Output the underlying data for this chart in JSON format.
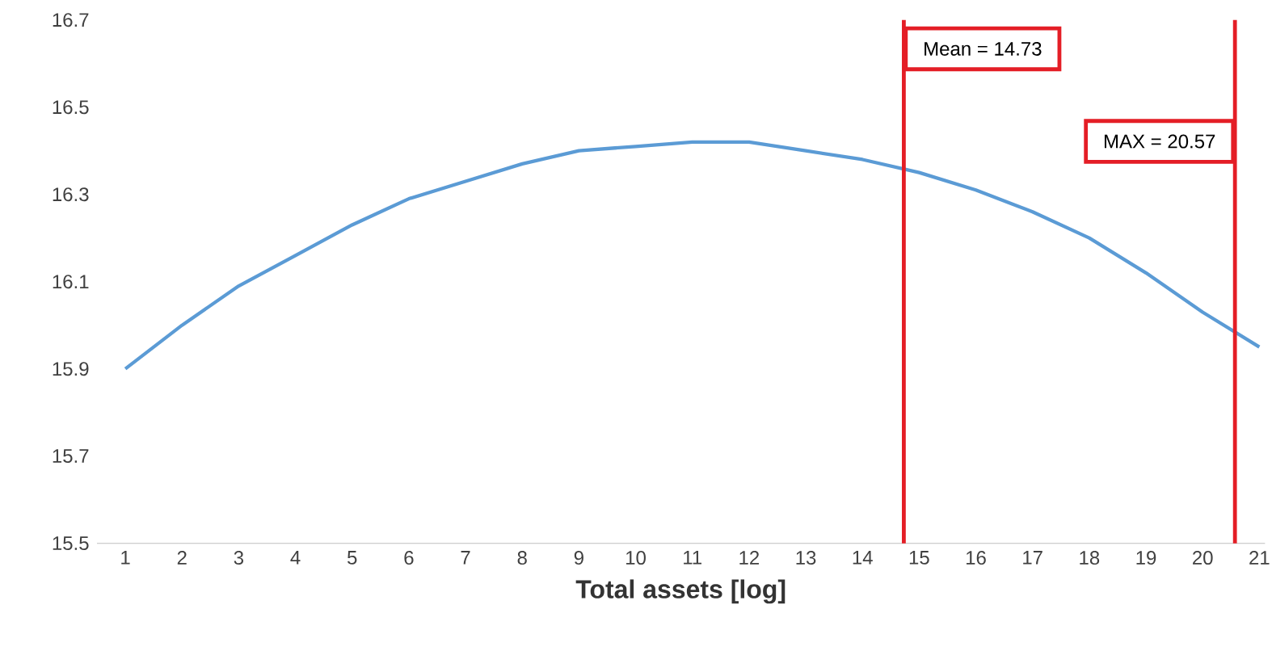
{
  "chart_data": {
    "type": "line",
    "xlabel": "Total assets [log]",
    "x": [
      1,
      2,
      3,
      4,
      5,
      6,
      7,
      8,
      9,
      10,
      11,
      12,
      13,
      14,
      15,
      16,
      17,
      18,
      19,
      20,
      21
    ],
    "series": [
      {
        "color": "#5b9bd5",
        "values": [
          15.9,
          16.0,
          16.09,
          16.16,
          16.23,
          16.29,
          16.33,
          16.37,
          16.4,
          16.41,
          16.42,
          16.42,
          16.4,
          16.38,
          16.35,
          16.31,
          16.26,
          16.2,
          16.12,
          16.03,
          15.95
        ]
      }
    ],
    "xlim": [
      0.5,
      21.1
    ],
    "xticks": [
      1,
      2,
      3,
      4,
      5,
      6,
      7,
      8,
      9,
      10,
      11,
      12,
      13,
      14,
      15,
      16,
      17,
      18,
      19,
      20,
      21
    ],
    "ylim": [
      15.5,
      16.7
    ],
    "yticks": [
      15.5,
      15.7,
      15.9,
      16.1,
      16.3,
      16.5,
      16.7
    ],
    "grid": false,
    "marker": "none",
    "line_style": "solid",
    "ref_lines": [
      {
        "axis": "x",
        "value": 14.73,
        "label": "Mean = 14.73",
        "color": "#e41e26"
      },
      {
        "axis": "x",
        "value": 20.57,
        "label": "MAX = 20.57",
        "color": "#e41e26"
      }
    ]
  }
}
